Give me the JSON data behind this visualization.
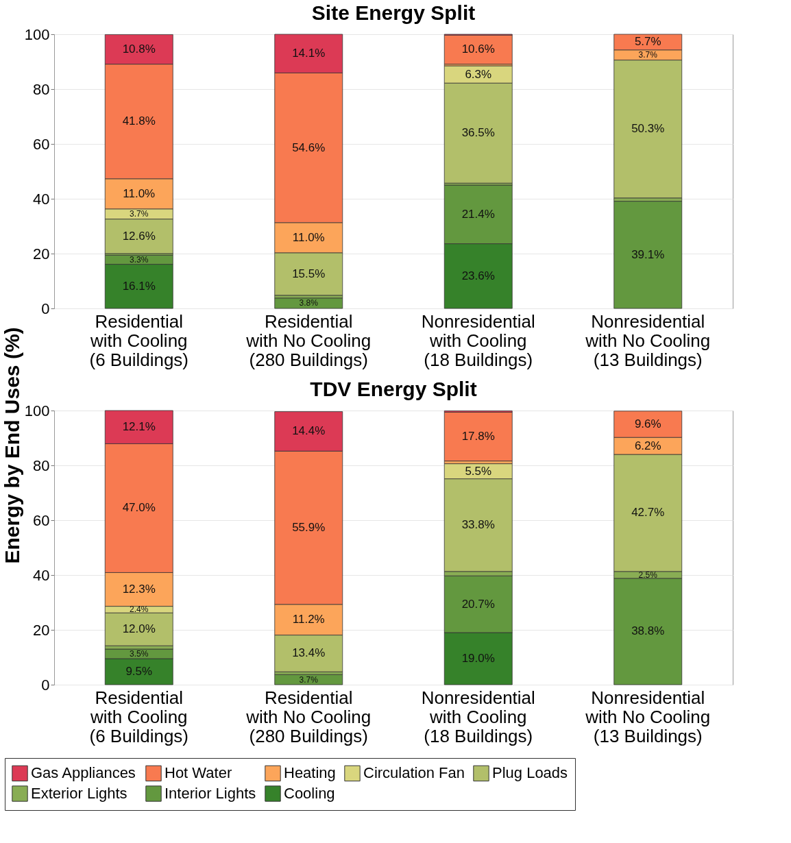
{
  "chart_data": [
    {
      "type": "bar",
      "title": "Site Energy Split",
      "ylabel": "Energy by End Uses (%)",
      "stacked": true,
      "legend": "bottom",
      "ylim": [
        0,
        100
      ],
      "yticks": [
        0,
        20,
        40,
        60,
        80,
        100
      ],
      "grid": "y",
      "categories": [
        "Residential\nwith Cooling\n(6 Buildings)",
        "Residential\nwith No Cooling\n(280 Buildings)",
        "Nonresidential\nwith Cooling\n(18 Buildings)",
        "Nonresidential\nwith No Cooling\n(13 Buildings)"
      ],
      "series": [
        {
          "name": "Cooling",
          "color": "#36822a",
          "values": [
            16.1,
            null,
            23.6,
            null
          ],
          "value_labels": [
            "16.1%",
            null,
            "23.6%",
            null
          ]
        },
        {
          "name": "Interior Lights",
          "color": "#63983f",
          "values": [
            3.3,
            3.8,
            21.4,
            39.1
          ],
          "value_labels": [
            "3.3%",
            "3.8%",
            "21.4%",
            "39.1%"
          ]
        },
        {
          "name": "Exterior Lights",
          "color": "#89ad54",
          "values": [
            0.6,
            1.0,
            0.7,
            1.2
          ],
          "value_labels": [
            null,
            null,
            null,
            null
          ]
        },
        {
          "name": "Plug Loads",
          "color": "#b2bf6a",
          "values": [
            12.6,
            15.5,
            36.5,
            50.3
          ],
          "value_labels": [
            "12.6%",
            "15.5%",
            "36.5%",
            "50.3%"
          ]
        },
        {
          "name": "Circulation Fan",
          "color": "#d9d67e",
          "values": [
            3.7,
            null,
            6.3,
            null
          ],
          "value_labels": [
            "3.7%",
            null,
            "6.3%",
            null
          ]
        },
        {
          "name": "Heating",
          "color": "#fca55a",
          "values": [
            11.0,
            11.0,
            0.6,
            3.7
          ],
          "value_labels": [
            "11.0%",
            "11.0%",
            null,
            "3.7%"
          ]
        },
        {
          "name": "Hot Water",
          "color": "#f87a50",
          "values": [
            41.8,
            54.6,
            10.6,
            5.7
          ],
          "value_labels": [
            "41.8%",
            "54.6%",
            "10.6%",
            "5.7%"
          ]
        },
        {
          "name": "Gas Appliances",
          "color": "#dc3a55",
          "values": [
            10.8,
            14.1,
            0.3,
            null
          ],
          "value_labels": [
            "10.8%",
            "14.1%",
            null,
            null
          ]
        }
      ]
    },
    {
      "type": "bar",
      "title": "TDV Energy Split",
      "stacked": true,
      "ylim": [
        0,
        100
      ],
      "yticks": [
        0,
        20,
        40,
        60,
        80,
        100
      ],
      "grid": "y",
      "legend": "bottom",
      "categories": [
        "Residential\nwith Cooling\n(6 Buildings)",
        "Residential\nwith No Cooling\n(280 Buildings)",
        "Nonresidential\nwith Cooling\n(18 Buildings)",
        "Nonresidential\nwith No Cooling\n(13 Buildings)"
      ],
      "series": [
        {
          "name": "Cooling",
          "color": "#36822a",
          "values": [
            9.5,
            null,
            19.0,
            null
          ],
          "value_labels": [
            "9.5%",
            null,
            "19.0%",
            null
          ]
        },
        {
          "name": "Interior Lights",
          "color": "#63983f",
          "values": [
            3.5,
            3.7,
            20.7,
            38.8
          ],
          "value_labels": [
            "3.5%",
            "3.7%",
            "20.7%",
            "38.8%"
          ]
        },
        {
          "name": "Exterior Lights",
          "color": "#89ad54",
          "values": [
            1.2,
            1.0,
            1.6,
            2.5
          ],
          "value_labels": [
            null,
            null,
            null,
            "2.5%"
          ]
        },
        {
          "name": "Plug Loads",
          "color": "#b2bf6a",
          "values": [
            12.0,
            13.4,
            33.8,
            42.7
          ],
          "value_labels": [
            "12.0%",
            "13.4%",
            "33.8%",
            "42.7%"
          ]
        },
        {
          "name": "Circulation Fan",
          "color": "#d9d67e",
          "values": [
            2.4,
            null,
            5.5,
            null
          ],
          "value_labels": [
            "2.4%",
            null,
            "5.5%",
            null
          ]
        },
        {
          "name": "Heating",
          "color": "#fca55a",
          "values": [
            12.3,
            11.2,
            1.0,
            6.2
          ],
          "value_labels": [
            "12.3%",
            "11.2%",
            null,
            "6.2%"
          ]
        },
        {
          "name": "Hot Water",
          "color": "#f87a50",
          "values": [
            47.0,
            55.9,
            17.8,
            9.6
          ],
          "value_labels": [
            "47.0%",
            "55.9%",
            "17.8%",
            "9.6%"
          ]
        },
        {
          "name": "Gas Appliances",
          "color": "#dc3a55",
          "values": [
            12.1,
            14.4,
            0.5,
            null
          ],
          "value_labels": [
            "12.1%",
            "14.4%",
            null,
            null
          ]
        }
      ]
    }
  ]
}
